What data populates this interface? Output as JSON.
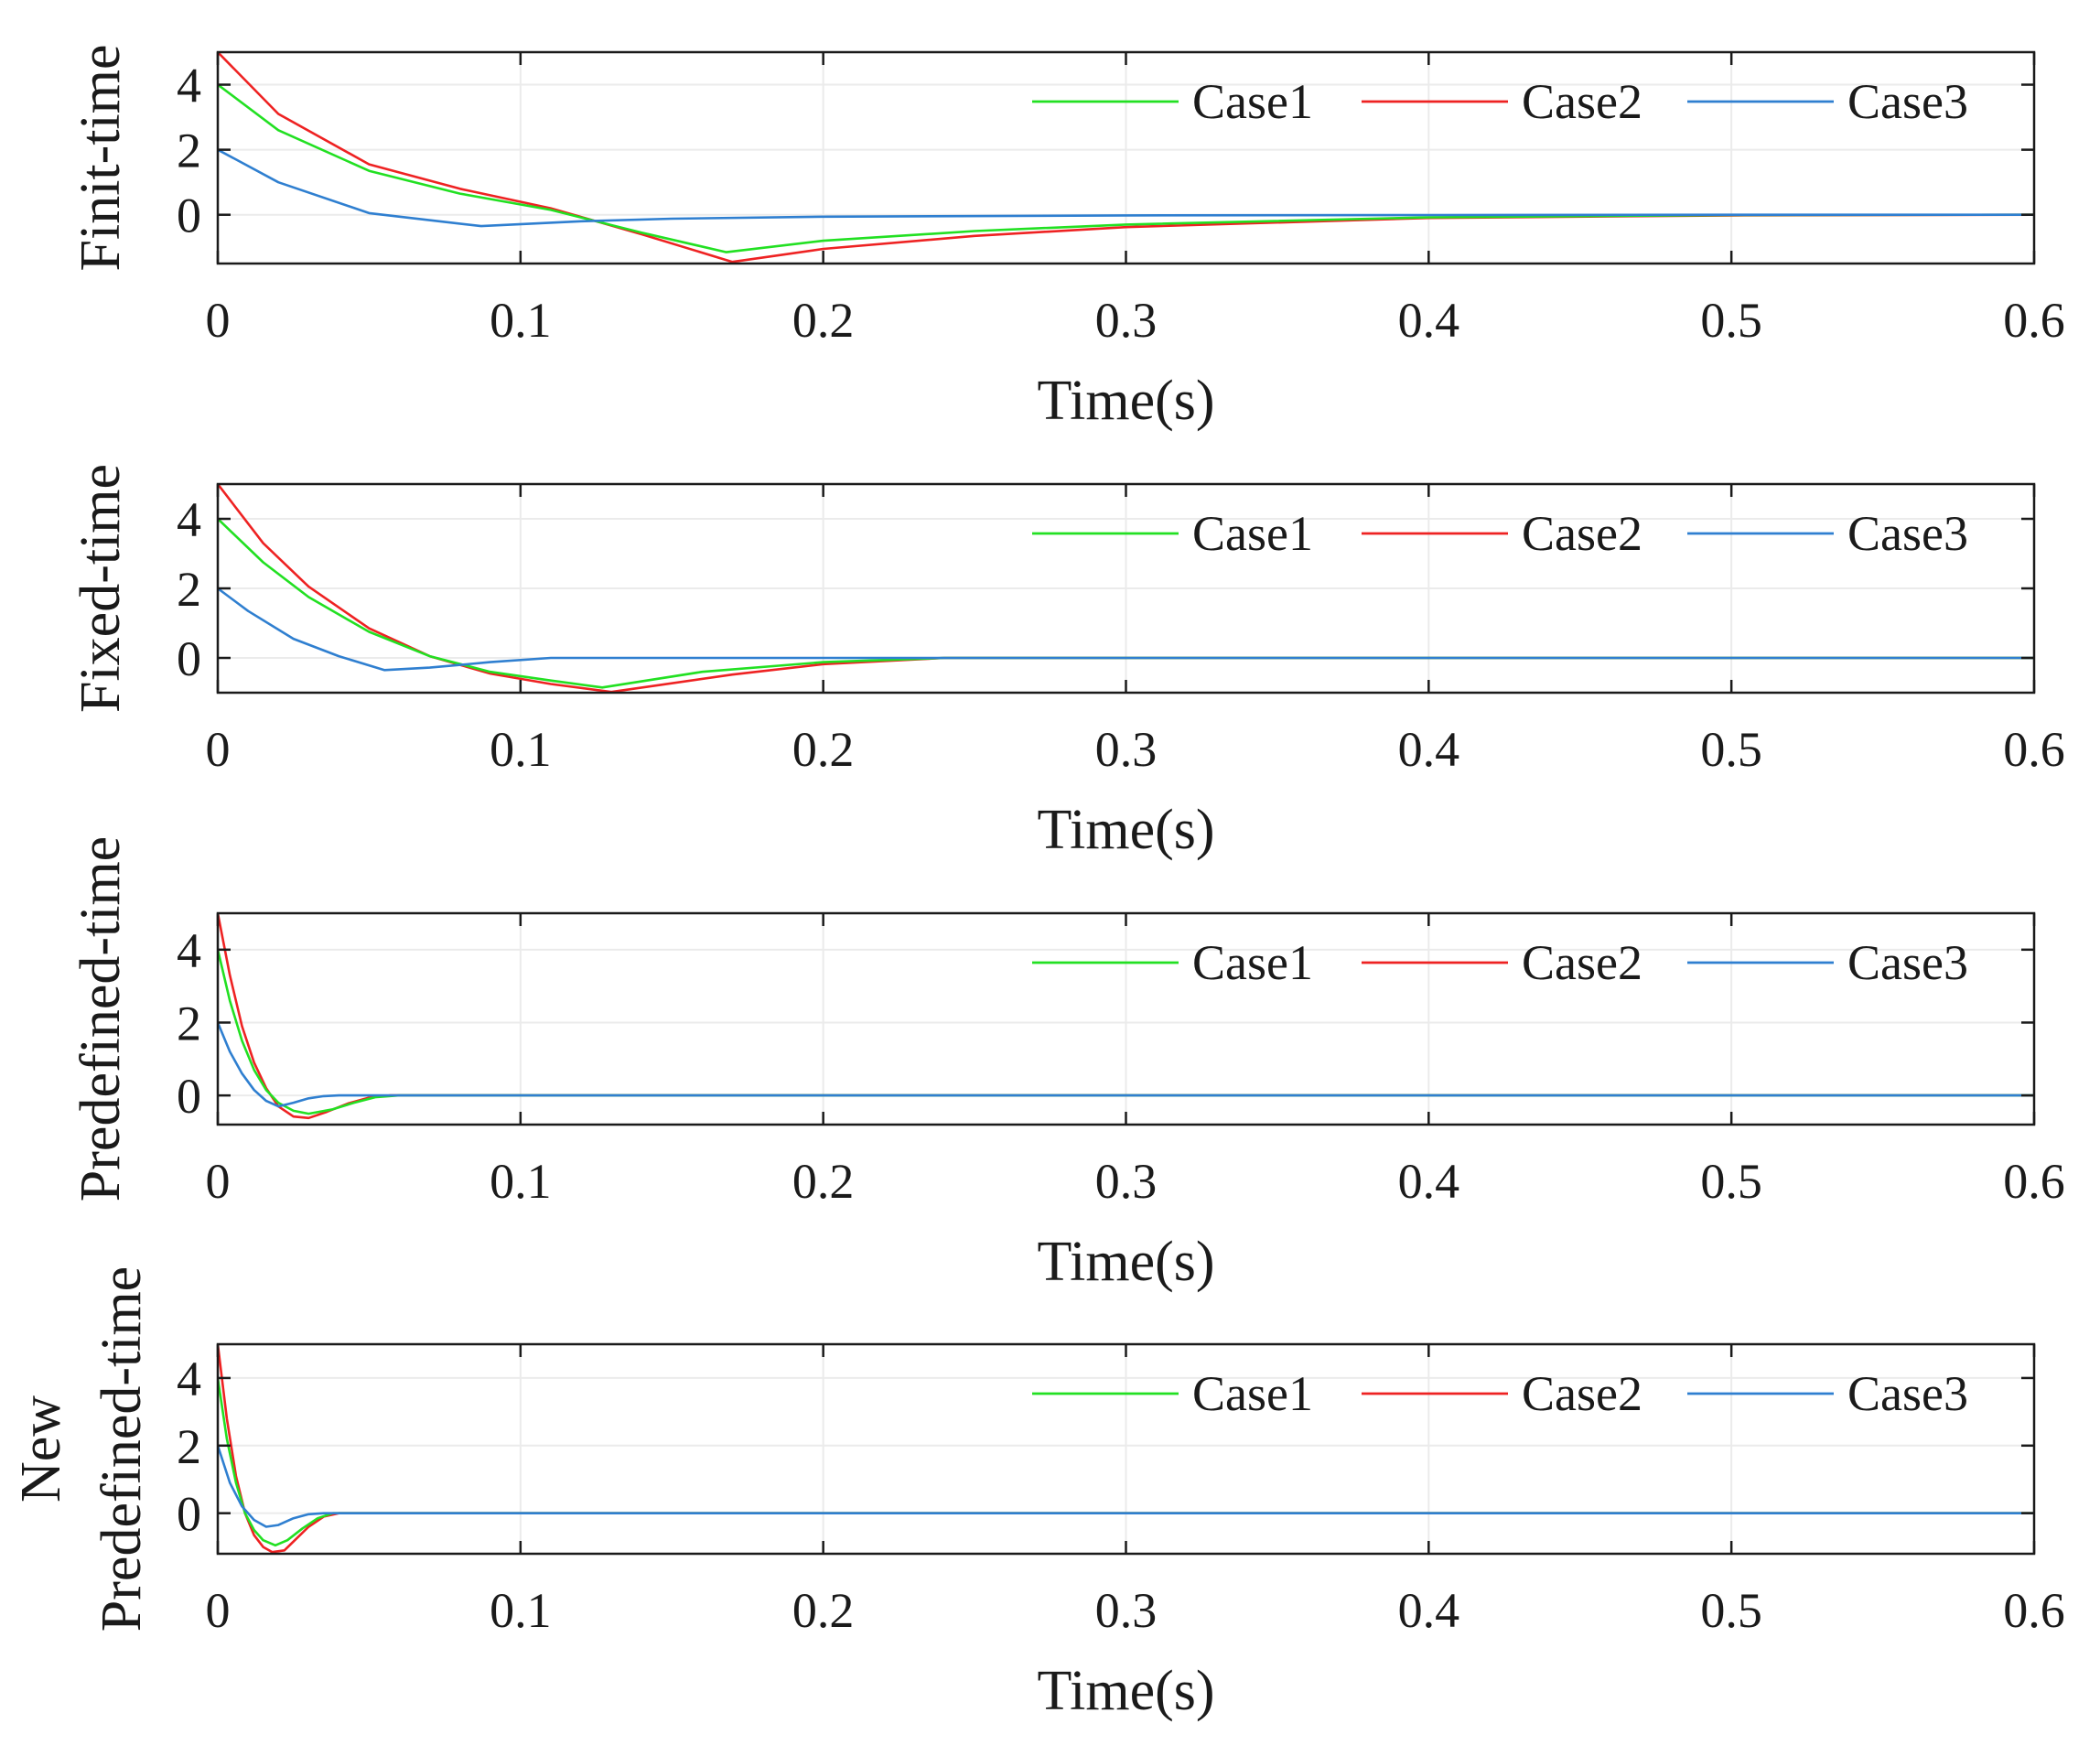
{
  "colors": {
    "Case1": "#22e022",
    "Case2": "#ee2222",
    "Case3": "#2f7fd0",
    "axis": "#1a1a1a",
    "grid": "#ebebeb"
  },
  "chart_data": [
    {
      "type": "line",
      "ylabel": "Finit-time",
      "ylabel_lines": [
        "Finit-time"
      ],
      "xlabel": "Time(s)",
      "xlim": [
        0,
        0.6
      ],
      "ylim": [
        -1.5,
        5
      ],
      "yticks": [
        0,
        2,
        4
      ],
      "xticks": [
        0,
        0.1,
        0.2,
        0.3,
        0.4,
        0.5,
        0.6
      ],
      "xtick_labels": [
        "0",
        "0.1",
        "0.2",
        "0.3",
        "0.4",
        "0.5",
        "0.6"
      ],
      "grid": true,
      "legend": "top-right",
      "series": [
        {
          "name": "Case1",
          "x": [
            0,
            0.02,
            0.05,
            0.08,
            0.11,
            0.14,
            0.168,
            0.2,
            0.25,
            0.3,
            0.4,
            0.5,
            0.6
          ],
          "y": [
            4,
            2.6,
            1.35,
            0.65,
            0.15,
            -0.55,
            -1.15,
            -0.8,
            -0.5,
            -0.3,
            -0.08,
            -0.01,
            0
          ]
        },
        {
          "name": "Case2",
          "x": [
            0,
            0.02,
            0.05,
            0.08,
            0.11,
            0.14,
            0.17,
            0.2,
            0.25,
            0.3,
            0.4,
            0.5,
            0.6
          ],
          "y": [
            5,
            3.1,
            1.55,
            0.8,
            0.2,
            -0.6,
            -1.45,
            -1.05,
            -0.65,
            -0.38,
            -0.1,
            -0.02,
            0
          ]
        },
        {
          "name": "Case3",
          "x": [
            0,
            0.02,
            0.05,
            0.087,
            0.12,
            0.15,
            0.2,
            0.3,
            0.4,
            0.5,
            0.6
          ],
          "y": [
            2,
            1.0,
            0.05,
            -0.35,
            -0.2,
            -0.12,
            -0.06,
            -0.02,
            -0.01,
            0,
            0
          ]
        }
      ]
    },
    {
      "type": "line",
      "ylabel": "Fixed-time",
      "ylabel_lines": [
        "Fixed-time"
      ],
      "xlabel": "Time(s)",
      "xlim": [
        0,
        0.6
      ],
      "ylim": [
        -1,
        5
      ],
      "yticks": [
        0,
        2,
        4
      ],
      "xticks": [
        0,
        0.1,
        0.2,
        0.3,
        0.4,
        0.5,
        0.6
      ],
      "xtick_labels": [
        "0",
        "0.1",
        "0.2",
        "0.3",
        "0.4",
        "0.5",
        "0.6"
      ],
      "grid": true,
      "legend": "top-right",
      "series": [
        {
          "name": "Case1",
          "x": [
            0,
            0.015,
            0.03,
            0.05,
            0.07,
            0.09,
            0.11,
            0.127,
            0.16,
            0.2,
            0.24,
            0.3,
            0.6
          ],
          "y": [
            4,
            2.75,
            1.75,
            0.75,
            0.05,
            -0.4,
            -0.65,
            -0.85,
            -0.4,
            -0.12,
            0,
            0,
            0
          ]
        },
        {
          "name": "Case2",
          "x": [
            0,
            0.015,
            0.03,
            0.05,
            0.07,
            0.09,
            0.11,
            0.13,
            0.17,
            0.2,
            0.24,
            0.3,
            0.6
          ],
          "y": [
            5,
            3.3,
            2.05,
            0.85,
            0.05,
            -0.45,
            -0.75,
            -0.98,
            -0.48,
            -0.18,
            0,
            0,
            0
          ]
        },
        {
          "name": "Case3",
          "x": [
            0,
            0.01,
            0.025,
            0.04,
            0.055,
            0.07,
            0.09,
            0.11,
            0.2,
            0.6
          ],
          "y": [
            2,
            1.35,
            0.55,
            0.05,
            -0.35,
            -0.28,
            -0.12,
            0,
            0,
            0
          ]
        }
      ]
    },
    {
      "type": "line",
      "ylabel": "Predefined-time",
      "ylabel_lines": [
        "Predefined-time"
      ],
      "xlabel": "Time(s)",
      "xlim": [
        0,
        0.6
      ],
      "ylim": [
        -0.8,
        5
      ],
      "yticks": [
        0,
        2,
        4
      ],
      "xticks": [
        0,
        0.1,
        0.2,
        0.3,
        0.4,
        0.5,
        0.6
      ],
      "xtick_labels": [
        "0",
        "0.1",
        "0.2",
        "0.3",
        "0.4",
        "0.5",
        "0.6"
      ],
      "grid": true,
      "legend": "top-right",
      "series": [
        {
          "name": "Case1",
          "x": [
            0,
            0.004,
            0.008,
            0.012,
            0.016,
            0.02,
            0.025,
            0.03,
            0.038,
            0.045,
            0.052,
            0.06,
            0.6
          ],
          "y": [
            4,
            2.6,
            1.5,
            0.7,
            0.15,
            -0.2,
            -0.42,
            -0.5,
            -0.38,
            -0.2,
            -0.05,
            0,
            0
          ]
        },
        {
          "name": "Case2",
          "x": [
            0,
            0.004,
            0.008,
            0.012,
            0.016,
            0.02,
            0.025,
            0.03,
            0.036,
            0.043,
            0.05,
            0.057,
            0.6
          ],
          "y": [
            5,
            3.3,
            1.9,
            0.9,
            0.2,
            -0.3,
            -0.58,
            -0.62,
            -0.45,
            -0.22,
            -0.06,
            0,
            0
          ]
        },
        {
          "name": "Case3",
          "x": [
            0,
            0.004,
            0.008,
            0.012,
            0.016,
            0.02,
            0.025,
            0.03,
            0.035,
            0.04,
            0.6
          ],
          "y": [
            2,
            1.2,
            0.6,
            0.15,
            -0.15,
            -0.3,
            -0.2,
            -0.08,
            -0.02,
            0,
            0
          ]
        }
      ]
    },
    {
      "type": "line",
      "ylabel": "New Predefined-time",
      "ylabel_lines": [
        "New",
        "Predefined-time"
      ],
      "xlabel": "Time(s)",
      "xlim": [
        0,
        0.6
      ],
      "ylim": [
        -1.2,
        5
      ],
      "yticks": [
        0,
        2,
        4
      ],
      "xticks": [
        0,
        0.1,
        0.2,
        0.3,
        0.4,
        0.5,
        0.6
      ],
      "xtick_labels": [
        "0",
        "0.1",
        "0.2",
        "0.3",
        "0.4",
        "0.5",
        "0.6"
      ],
      "grid": true,
      "legend": "top-right",
      "series": [
        {
          "name": "Case1",
          "x": [
            0,
            0.003,
            0.006,
            0.009,
            0.012,
            0.015,
            0.019,
            0.023,
            0.028,
            0.033,
            0.038,
            0.6
          ],
          "y": [
            4,
            2.2,
            0.9,
            0.0,
            -0.5,
            -0.8,
            -0.95,
            -0.8,
            -0.45,
            -0.15,
            0,
            0
          ]
        },
        {
          "name": "Case2",
          "x": [
            0,
            0.003,
            0.006,
            0.009,
            0.012,
            0.015,
            0.018,
            0.022,
            0.026,
            0.03,
            0.035,
            0.04,
            0.6
          ],
          "y": [
            5,
            2.8,
            1.1,
            0.0,
            -0.65,
            -1.0,
            -1.15,
            -1.1,
            -0.75,
            -0.4,
            -0.1,
            0,
            0
          ]
        },
        {
          "name": "Case3",
          "x": [
            0,
            0.004,
            0.008,
            0.012,
            0.016,
            0.02,
            0.025,
            0.03,
            0.035,
            0.6
          ],
          "y": [
            2,
            0.9,
            0.2,
            -0.2,
            -0.4,
            -0.35,
            -0.15,
            -0.03,
            0,
            0
          ]
        }
      ]
    }
  ]
}
